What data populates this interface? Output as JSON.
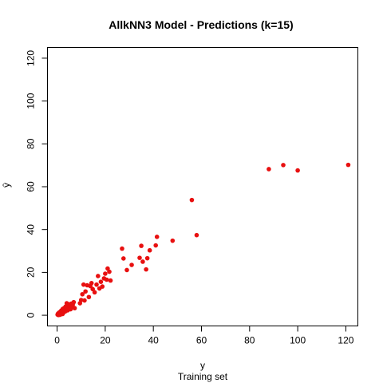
{
  "chart_data": {
    "type": "scatter",
    "title": "AllkNN3 Model - Predictions (k=15)",
    "xlabel": "y",
    "ylabel": "ŷ",
    "subtitle": "Training set",
    "xlim": [
      -4,
      125
    ],
    "ylim": [
      -5,
      125
    ],
    "xticks": [
      0,
      20,
      40,
      60,
      80,
      100,
      120
    ],
    "yticks": [
      0,
      20,
      40,
      60,
      80,
      100,
      120
    ],
    "point_color": "#e81010",
    "grid": false,
    "series": [
      {
        "points": [
          [
            0.2,
            0.3
          ],
          [
            0.4,
            0.8
          ],
          [
            0.6,
            0.5
          ],
          [
            0.8,
            1.2
          ],
          [
            1.0,
            0.6
          ],
          [
            1.2,
            1.5
          ],
          [
            1.4,
            0.9
          ],
          [
            1.6,
            2.0
          ],
          [
            1.8,
            1.1
          ],
          [
            2.0,
            2.4
          ],
          [
            2.2,
            1.6
          ],
          [
            2.4,
            3.0
          ],
          [
            2.6,
            2.2
          ],
          [
            2.8,
            1.4
          ],
          [
            3.0,
            3.4
          ],
          [
            3.2,
            2.6
          ],
          [
            3.4,
            1.8
          ],
          [
            3.6,
            4.1
          ],
          [
            3.8,
            2.9
          ],
          [
            4.0,
            5.6
          ],
          [
            4.2,
            3.6
          ],
          [
            4.4,
            2.3
          ],
          [
            4.6,
            4.7
          ],
          [
            4.8,
            3.1
          ],
          [
            5.0,
            5.1
          ],
          [
            5.3,
            4.4
          ],
          [
            5.6,
            2.8
          ],
          [
            5.9,
            5.4
          ],
          [
            6.2,
            3.9
          ],
          [
            6.5,
            4.9
          ],
          [
            6.9,
            6.1
          ],
          [
            7.3,
            3.3
          ],
          [
            0.5,
            0.1
          ],
          [
            1.1,
            0.2
          ],
          [
            1.5,
            0.4
          ],
          [
            2.3,
            0.6
          ],
          [
            9.5,
            5.6
          ],
          [
            10.0,
            7.1
          ],
          [
            10.5,
            9.8
          ],
          [
            11.0,
            14.3
          ],
          [
            11.4,
            6.9
          ],
          [
            11.8,
            11.1
          ],
          [
            12.5,
            14.0
          ],
          [
            13.2,
            8.5
          ],
          [
            13.8,
            13.6
          ],
          [
            14.3,
            15.0
          ],
          [
            14.8,
            12.2
          ],
          [
            15.6,
            10.7
          ],
          [
            16.4,
            14.3
          ],
          [
            17.0,
            18.3
          ],
          [
            17.6,
            12.5
          ],
          [
            18.2,
            15.6
          ],
          [
            18.8,
            13.4
          ],
          [
            19.5,
            17.2
          ],
          [
            20.0,
            19.4
          ],
          [
            20.6,
            16.6
          ],
          [
            21.0,
            21.8
          ],
          [
            21.7,
            20.3
          ],
          [
            22.2,
            16.2
          ],
          [
            27.0,
            31.1
          ],
          [
            27.6,
            26.5
          ],
          [
            29.0,
            21.1
          ],
          [
            31.0,
            23.5
          ],
          [
            34.3,
            26.8
          ],
          [
            35.0,
            32.4
          ],
          [
            35.6,
            25.0
          ],
          [
            37.0,
            21.4
          ],
          [
            37.5,
            26.6
          ],
          [
            38.5,
            30.3
          ],
          [
            41.0,
            32.6
          ],
          [
            41.5,
            36.6
          ],
          [
            48.0,
            34.8
          ],
          [
            56.0,
            53.8
          ],
          [
            58.0,
            37.4
          ],
          [
            88.0,
            68.2
          ],
          [
            94.0,
            70.1
          ],
          [
            100.0,
            67.6
          ],
          [
            121.0,
            70.2
          ]
        ]
      }
    ]
  }
}
